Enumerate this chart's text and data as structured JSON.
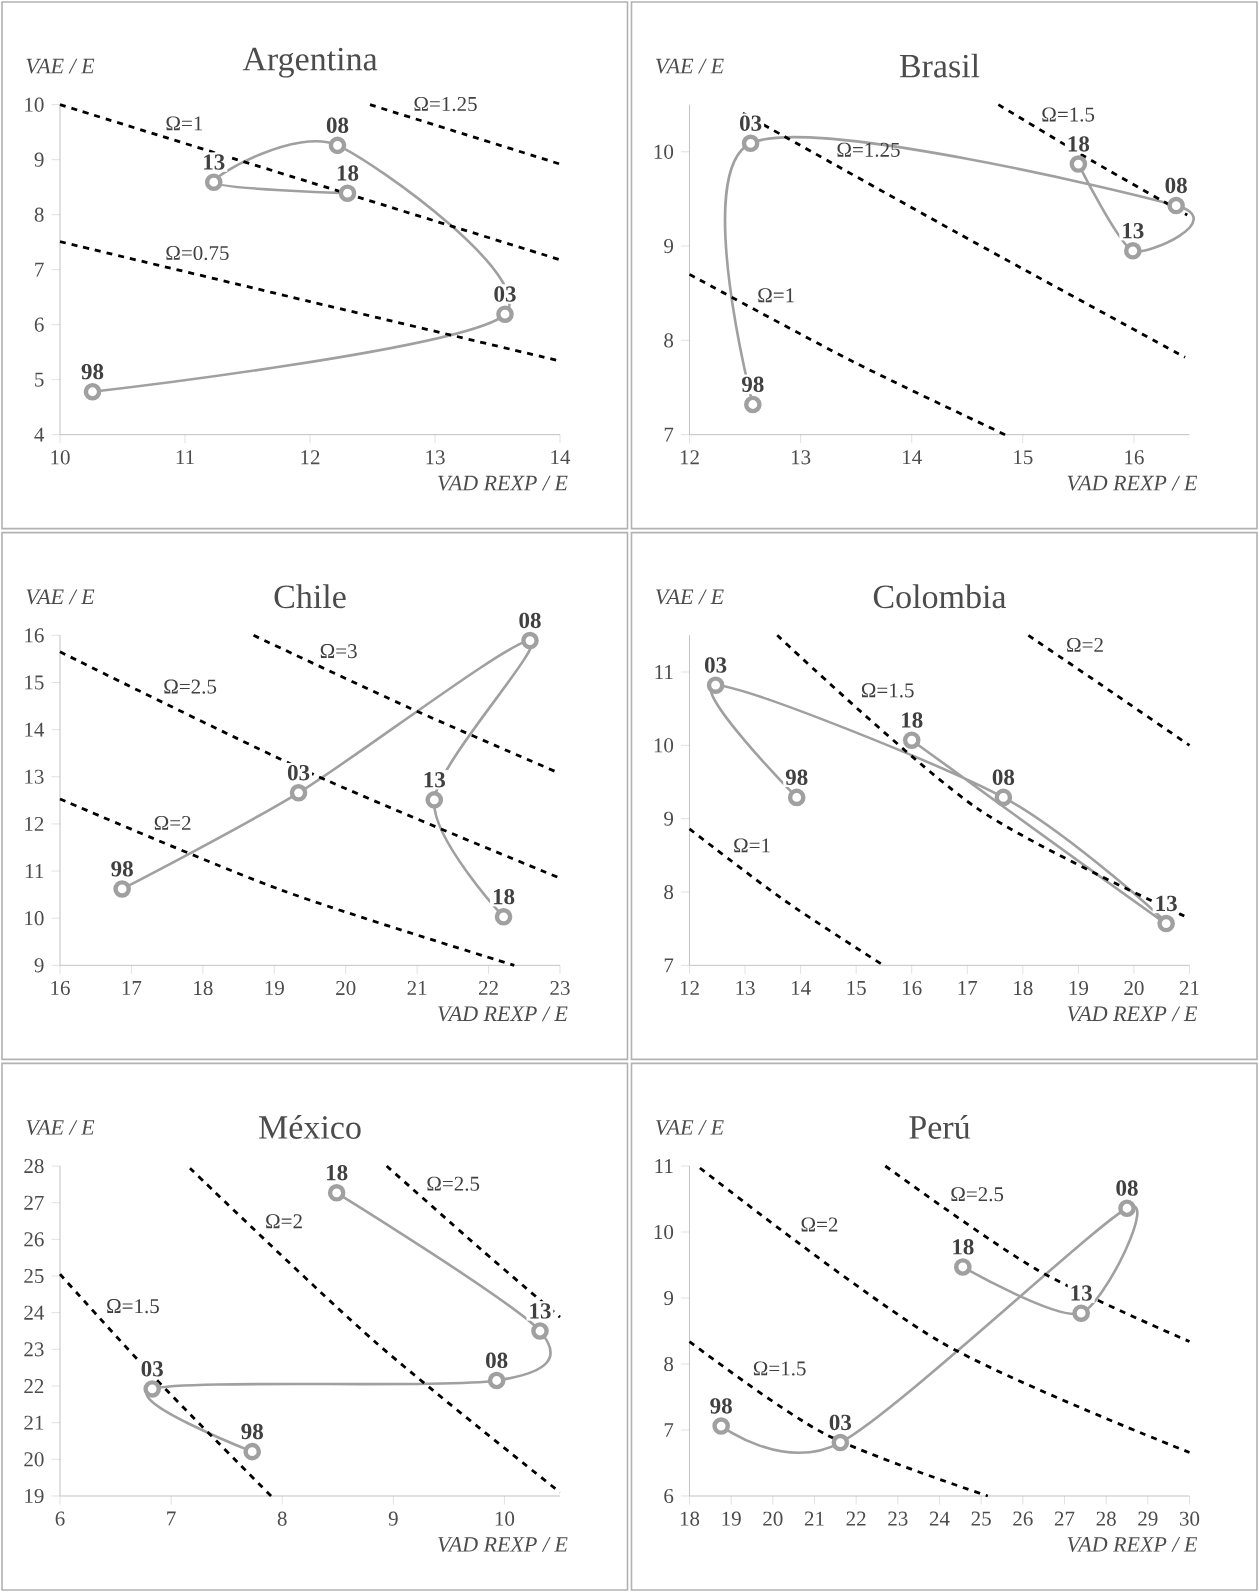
{
  "chart_data": [
    {
      "type": "line",
      "title": "Argentina",
      "xlabel": "VAD REXP / E",
      "ylabel": "VAE / E",
      "xlim": [
        10,
        14
      ],
      "ylim": [
        4,
        10
      ],
      "xticks": [
        10,
        11,
        12,
        13,
        14
      ],
      "yticks": [
        4,
        5,
        6,
        7,
        8,
        9,
        10
      ],
      "annotations": [
        {
          "text": "98",
          "x": 10.26,
          "y": 4.78
        },
        {
          "text": "03",
          "x": 13.56,
          "y": 6.19
        },
        {
          "text": "08",
          "x": 12.22,
          "y": 9.26
        },
        {
          "text": "13",
          "x": 11.23,
          "y": 8.59
        },
        {
          "text": "18",
          "x": 12.3,
          "y": 8.39
        }
      ],
      "series": [
        {
          "color": "#a0a0a0",
          "marker": "circle",
          "x": [
            10.26,
            13.56,
            12.22,
            11.23,
            12.3
          ],
          "values": [
            4.78,
            6.19,
            9.26,
            8.59,
            8.39
          ]
        },
        {
          "name": "Ω=0.75",
          "color": "#000000",
          "line_style": "dashed",
          "x": [
            10,
            12,
            14
          ],
          "values": [
            7.51,
            6.42,
            5.34
          ]
        },
        {
          "name": "Ω=1",
          "color": "#000000",
          "line_style": "dashed",
          "x": [
            10,
            12,
            14
          ],
          "values": [
            10,
            8.59,
            7.18
          ]
        },
        {
          "name": "Ω=1.25",
          "color": "#000000",
          "line_style": "dashed",
          "x": [
            12.48,
            13.24,
            14
          ],
          "values": [
            10,
            9.46,
            8.92
          ]
        }
      ]
    },
    {
      "type": "line",
      "title": "Brasil",
      "xlabel": "VAD REXP / E",
      "ylabel": "VAE / E",
      "xlim": [
        12,
        16.5
      ],
      "ylim": [
        7,
        10.5
      ],
      "xticks": [
        12,
        13,
        14,
        15,
        16
      ],
      "yticks": [
        7,
        8,
        9,
        10
      ],
      "annotations": [
        {
          "text": "98",
          "x": 12.57,
          "y": 7.32
        },
        {
          "text": "03",
          "x": 12.55,
          "y": 10.09
        },
        {
          "text": "08",
          "x": 16.38,
          "y": 9.43
        },
        {
          "text": "13",
          "x": 15.99,
          "y": 8.95
        },
        {
          "text": "18",
          "x": 15.5,
          "y": 9.87
        }
      ],
      "series": [
        {
          "color": "#a0a0a0",
          "marker": "circle",
          "x": [
            12.57,
            12.55,
            16.38,
            15.99,
            15.5
          ],
          "values": [
            7.32,
            10.09,
            9.43,
            8.95,
            9.87
          ]
        },
        {
          "name": "Ω=1",
          "color": "#000000",
          "line_style": "dashed",
          "x": [
            12,
            13.48,
            14.84
          ],
          "values": [
            8.7,
            7.77,
            7.0
          ]
        },
        {
          "name": "Ω=1.25",
          "color": "#000000",
          "line_style": "dashed",
          "x": [
            12.48,
            14.41,
            16.46
          ],
          "values": [
            10.41,
            9.14,
            7.82
          ]
        },
        {
          "name": "Ω=1.5",
          "color": "#000000",
          "line_style": "dashed",
          "x": [
            14.78,
            15.63,
            16.48
          ],
          "values": [
            10.5,
            9.9,
            9.33
          ]
        }
      ]
    },
    {
      "type": "line",
      "title": "Chile",
      "xlabel": "VAD REXP / E",
      "ylabel": "VAE / E",
      "xlim": [
        16,
        23
      ],
      "ylim": [
        9,
        16
      ],
      "xticks": [
        16,
        17,
        18,
        19,
        20,
        21,
        22,
        23
      ],
      "yticks": [
        9,
        10,
        11,
        12,
        13,
        14,
        15,
        16
      ],
      "annotations": [
        {
          "text": "98",
          "x": 16.87,
          "y": 10.62
        },
        {
          "text": "03",
          "x": 19.34,
          "y": 12.66
        },
        {
          "text": "08",
          "x": 22.58,
          "y": 15.89
        },
        {
          "text": "13",
          "x": 21.24,
          "y": 12.51
        },
        {
          "text": "18",
          "x": 22.21,
          "y": 10.03
        }
      ],
      "series": [
        {
          "color": "#a0a0a0",
          "marker": "circle",
          "x": [
            16.87,
            19.34,
            22.58,
            21.24,
            22.21
          ],
          "values": [
            10.62,
            12.66,
            15.89,
            12.51,
            10.03
          ]
        },
        {
          "name": "Ω=2",
          "color": "#000000",
          "line_style": "dashed",
          "x": [
            16,
            19.11,
            22.36
          ],
          "values": [
            12.53,
            10.59,
            9.0
          ]
        },
        {
          "name": "Ω=2.5",
          "color": "#000000",
          "line_style": "dashed",
          "x": [
            16,
            19.52,
            23
          ],
          "values": [
            15.65,
            13.07,
            10.85
          ]
        },
        {
          "name": "Ω=3",
          "color": "#000000",
          "line_style": "dashed",
          "x": [
            18.71,
            20.88,
            23
          ],
          "values": [
            16.0,
            14.47,
            13.07
          ]
        }
      ]
    },
    {
      "type": "line",
      "title": "Colombia",
      "xlabel": "VAD REXP / E",
      "ylabel": "VAE / E",
      "xlim": [
        12,
        21
      ],
      "ylim": [
        7,
        11.5
      ],
      "xticks": [
        12,
        13,
        14,
        15,
        16,
        17,
        18,
        19,
        20,
        21
      ],
      "yticks": [
        7,
        8,
        9,
        10,
        11
      ],
      "annotations": [
        {
          "text": "98",
          "x": 13.93,
          "y": 9.29
        },
        {
          "text": "03",
          "x": 12.47,
          "y": 10.82
        },
        {
          "text": "08",
          "x": 17.65,
          "y": 9.29
        },
        {
          "text": "13",
          "x": 20.58,
          "y": 7.57
        },
        {
          "text": "18",
          "x": 16.0,
          "y": 10.07
        }
      ],
      "series": [
        {
          "color": "#a0a0a0",
          "marker": "circle",
          "x": [
            13.93,
            12.47,
            17.65,
            20.58,
            16.0
          ],
          "values": [
            9.29,
            10.82,
            9.29,
            7.57,
            10.07
          ]
        },
        {
          "name": "Ω=1",
          "color": "#000000",
          "line_style": "dashed",
          "x": [
            12,
            13.7,
            15.49
          ],
          "values": [
            8.86,
            7.89,
            7.0
          ]
        },
        {
          "name": "Ω=1.5",
          "color": "#000000",
          "line_style": "dashed",
          "x": [
            13.58,
            17.18,
            21
          ],
          "values": [
            11.5,
            9.14,
            7.64
          ]
        },
        {
          "name": "Ω=2",
          "color": "#000000",
          "line_style": "dashed",
          "x": [
            18.1,
            19.44,
            21
          ],
          "values": [
            11.5,
            10.81,
            10.0
          ]
        }
      ]
    },
    {
      "type": "line",
      "title": "México",
      "xlabel": "VAD REXP / E",
      "ylabel": "VAE / E",
      "xlim": [
        6,
        10.5
      ],
      "ylim": [
        19,
        28
      ],
      "xticks": [
        6,
        7,
        8,
        9,
        10
      ],
      "yticks": [
        19,
        20,
        21,
        22,
        23,
        24,
        25,
        26,
        27,
        28
      ],
      "annotations": [
        {
          "text": "98",
          "x": 7.73,
          "y": 20.21
        },
        {
          "text": "03",
          "x": 6.83,
          "y": 21.92
        },
        {
          "text": "08",
          "x": 9.93,
          "y": 22.15
        },
        {
          "text": "13",
          "x": 10.32,
          "y": 23.5
        },
        {
          "text": "18",
          "x": 8.49,
          "y": 27.27
        }
      ],
      "series": [
        {
          "color": "#a0a0a0",
          "marker": "circle",
          "x": [
            7.73,
            6.83,
            9.93,
            10.32,
            8.49
          ],
          "values": [
            20.21,
            21.92,
            22.15,
            23.5,
            27.27
          ]
        },
        {
          "name": "Ω=1.5",
          "color": "#000000",
          "line_style": "dashed",
          "x": [
            6,
            6.85,
            7.9
          ],
          "values": [
            25.05,
            22.23,
            19.0
          ]
        },
        {
          "name": "Ω=2",
          "color": "#000000",
          "line_style": "dashed",
          "x": [
            7.17,
            8.83,
            10.5
          ],
          "values": [
            27.94,
            23.22,
            19.1
          ]
        },
        {
          "name": "Ω=2.5",
          "color": "#000000",
          "line_style": "dashed",
          "x": [
            8.94,
            9.78,
            10.5
          ],
          "values": [
            28.0,
            25.75,
            23.88
          ]
        }
      ]
    },
    {
      "type": "line",
      "title": "Perú",
      "xlabel": "VAD REXP / E",
      "ylabel": "VAE / E",
      "xlim": [
        18,
        30
      ],
      "ylim": [
        6,
        11
      ],
      "xticks": [
        18,
        19,
        20,
        21,
        22,
        23,
        24,
        25,
        26,
        27,
        28,
        29,
        30
      ],
      "yticks": [
        6,
        7,
        8,
        9,
        10,
        11
      ],
      "annotations": [
        {
          "text": "98",
          "x": 18.76,
          "y": 7.06
        },
        {
          "text": "03",
          "x": 21.62,
          "y": 6.81
        },
        {
          "text": "08",
          "x": 28.5,
          "y": 10.36
        },
        {
          "text": "13",
          "x": 27.4,
          "y": 8.77
        },
        {
          "text": "18",
          "x": 24.56,
          "y": 9.47
        }
      ],
      "series": [
        {
          "color": "#a0a0a0",
          "marker": "circle",
          "x": [
            18.76,
            21.62,
            28.5,
            27.4,
            24.56
          ],
          "values": [
            7.06,
            6.81,
            10.36,
            8.77,
            9.47
          ]
        },
        {
          "name": "Ω=1.5",
          "color": "#000000",
          "line_style": "dashed",
          "x": [
            18,
            21.25,
            25.16
          ],
          "values": [
            8.34,
            6.94,
            6.0
          ]
        },
        {
          "name": "Ω=2",
          "color": "#000000",
          "line_style": "dashed",
          "x": [
            18.25,
            24.01,
            30
          ],
          "values": [
            10.97,
            8.34,
            6.66
          ]
        },
        {
          "name": "Ω=2.5",
          "color": "#000000",
          "line_style": "dashed",
          "x": [
            22.7,
            26.31,
            30
          ],
          "values": [
            11.0,
            9.44,
            8.34
          ]
        }
      ]
    }
  ]
}
